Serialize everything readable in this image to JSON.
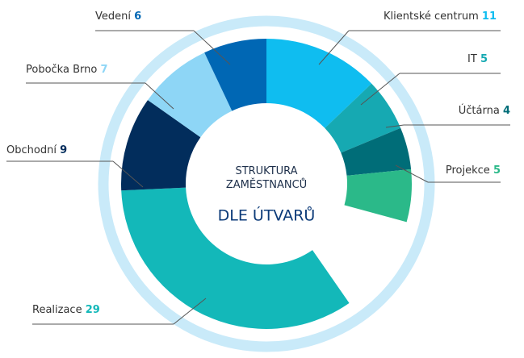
{
  "chart_data": {
    "type": "donut",
    "title": "STRUKTURA ZAMĚSTNANCŮ",
    "subtitle": "DLE ÚTVARŮ",
    "categories": [
      "Klientské centrum",
      "IT",
      "Účtárna",
      "Projekce",
      "Realizace",
      "Obchodní",
      "Pobočka Brno",
      "Vedení"
    ],
    "values": [
      11,
      5,
      4,
      5,
      29,
      9,
      7,
      6
    ],
    "colors": [
      "#0fbdf0",
      "#16a9b2",
      "#006d78",
      "#2bb989",
      "#13b8b9",
      "#022d5c",
      "#8ed6f6",
      "#0067b4"
    ]
  }
}
